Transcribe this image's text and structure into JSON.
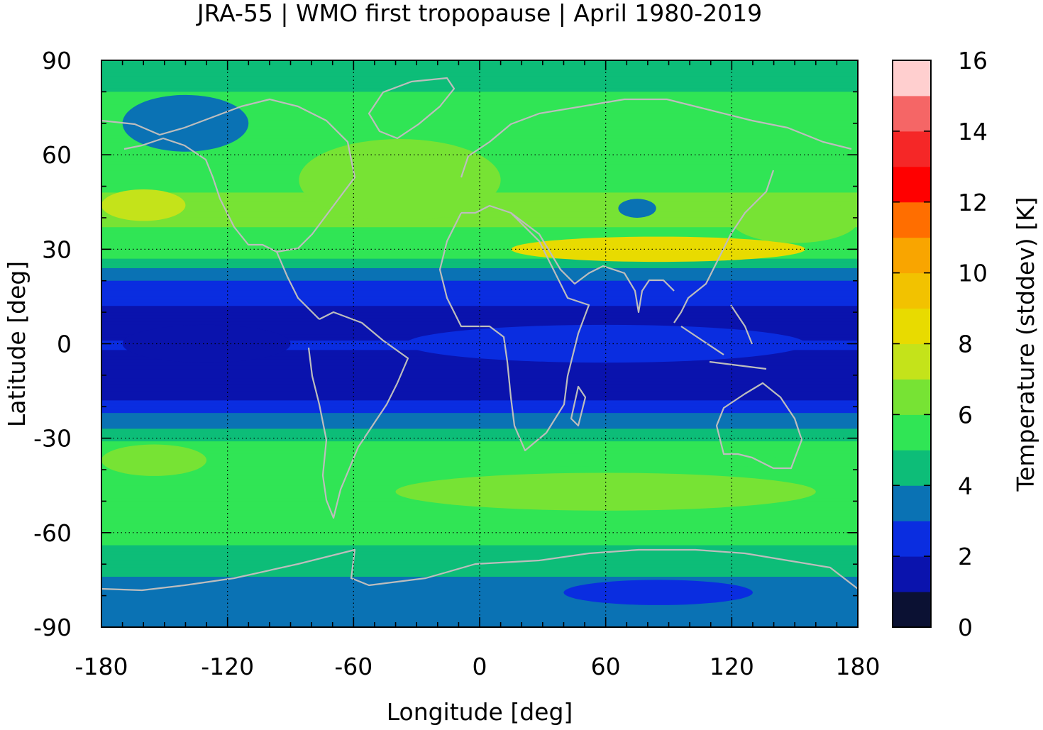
{
  "chart_data": {
    "type": "heatmap",
    "title": "JRA-55 | WMO first tropopause | April 1980-2019",
    "xlabel": "Longitude [deg]",
    "ylabel": "Latitude [deg]",
    "xlim": [
      -180,
      180
    ],
    "ylim": [
      -90,
      90
    ],
    "x_ticks": [
      -180,
      -120,
      -60,
      0,
      60,
      120,
      180
    ],
    "y_ticks": [
      90,
      60,
      30,
      0,
      -30,
      -60,
      -90
    ],
    "x_tick_labels": [
      "-180",
      "-120",
      "-60",
      "0",
      "60",
      "120",
      "180"
    ],
    "y_tick_labels": [
      "90",
      "60",
      "30",
      "0",
      "-30",
      "-60",
      "-90"
    ],
    "grid": true,
    "colorbar": {
      "label": "Temperature (stddev) [K]",
      "ticks": [
        0,
        2,
        4,
        6,
        8,
        10,
        12,
        14,
        16
      ],
      "tick_labels": [
        "0",
        "2",
        "4",
        "6",
        "8",
        "10",
        "12",
        "14",
        "16"
      ],
      "range": [
        0,
        16
      ],
      "step": 1,
      "colors": [
        "#0b1133",
        "#0a13ad",
        "#0a2de0",
        "#0a72b4",
        "#0dbd78",
        "#30e555",
        "#77e334",
        "#c4e31a",
        "#e8db00",
        "#f2c200",
        "#f9a500",
        "#ff6e00",
        "#ff0000",
        "#f52727",
        "#f56666",
        "#ffcfcf"
      ]
    },
    "overlay": "coastlines",
    "zonal_profile": {
      "lat": [
        90,
        85,
        80,
        75,
        70,
        65,
        60,
        55,
        50,
        45,
        40,
        35,
        30,
        27,
        25,
        22,
        20,
        15,
        10,
        5,
        0,
        -5,
        -10,
        -15,
        -20,
        -22,
        -25,
        -28,
        -30,
        -35,
        -40,
        -45,
        -50,
        -55,
        -60,
        -65,
        -70,
        -72,
        -75,
        -80,
        -85,
        -90
      ],
      "value": [
        4.5,
        4.7,
        5.0,
        5.2,
        5.4,
        5.5,
        5.6,
        5.7,
        5.9,
        6.1,
        6.1,
        5.9,
        5.8,
        5.0,
        4.3,
        3.6,
        3.0,
        2.4,
        1.8,
        1.7,
        2.1,
        1.8,
        1.5,
        1.6,
        2.3,
        2.9,
        3.6,
        4.3,
        4.9,
        5.4,
        5.6,
        5.9,
        6.0,
        5.7,
        5.3,
        4.9,
        4.5,
        4.1,
        3.9,
        3.6,
        3.5,
        3.5
      ]
    },
    "features": [
      {
        "lon": -140,
        "lat": 70,
        "value": 3.5,
        "rx": 30,
        "ry": 9
      },
      {
        "lon": -160,
        "lat": 44,
        "value": 7.2,
        "rx": 20,
        "ry": 5
      },
      {
        "lon": -38,
        "lat": 52,
        "value": 6.6,
        "rx": 48,
        "ry": 13
      },
      {
        "lon": 85,
        "lat": 30,
        "value": 8.0,
        "rx": 70,
        "ry": 4
      },
      {
        "lon": 75,
        "lat": 43,
        "value": 3.8,
        "rx": 9,
        "ry": 3
      },
      {
        "lon": 150,
        "lat": 39,
        "value": 6.8,
        "rx": 30,
        "ry": 7
      },
      {
        "lon": 60,
        "lat": 0,
        "value": 2.8,
        "rx": 95,
        "ry": 6
      },
      {
        "lon": -130,
        "lat": 0,
        "value": 1.7,
        "rx": 40,
        "ry": 6
      },
      {
        "lon": 60,
        "lat": -47,
        "value": 6.5,
        "rx": 100,
        "ry": 6
      },
      {
        "lon": -155,
        "lat": -37,
        "value": 6.4,
        "rx": 25,
        "ry": 5
      },
      {
        "lon": 45,
        "lat": -37,
        "value": 5.0,
        "rx": 18,
        "ry": 2
      },
      {
        "lon": 130,
        "lat": -37,
        "value": 5.0,
        "rx": 12,
        "ry": 2
      },
      {
        "lon": 85,
        "lat": -79,
        "value": 2.9,
        "rx": 45,
        "ry": 4
      }
    ]
  }
}
